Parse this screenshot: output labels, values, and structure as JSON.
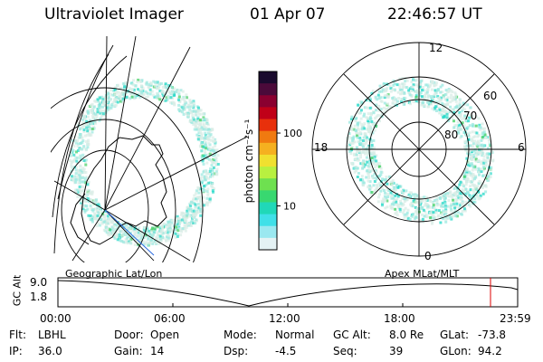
{
  "header": {
    "title": "Ultraviolet Imager",
    "date": "01 Apr 07",
    "time": "22:46:57 UT"
  },
  "panels": {
    "left_label": "Geographic Lat/Lon",
    "right_label": "Apex MLat/MLT"
  },
  "colorbar": {
    "label": "photon cm⁻²s⁻¹",
    "tick_labels": [
      "100",
      "10"
    ],
    "tick_values": [
      100,
      10
    ],
    "min": 2.5,
    "max": 700,
    "colors": [
      "#1a0a2e",
      "#4b0a3a",
      "#8a0030",
      "#c00018",
      "#e8300c",
      "#f07a10",
      "#f5b020",
      "#f0e030",
      "#b8f040",
      "#6ee050",
      "#38d870",
      "#20d8b8",
      "#40e0e8",
      "#9ae8f0",
      "#e4f2f4"
    ]
  },
  "polar": {
    "ring_labels": [
      "60",
      "70",
      "80"
    ],
    "mlt_labels": [
      "12",
      "18",
      "6",
      "0"
    ]
  },
  "timeline": {
    "y_axis_label": "GC Alt",
    "y_ticks": [
      "9.0",
      "1.8"
    ],
    "x_ticks": [
      "00:00",
      "06:00",
      "12:00",
      "18:00",
      "23:59"
    ],
    "marker_time": "22:46:57"
  },
  "info": [
    [
      {
        "k": "Flt:",
        "v": "LBHL"
      },
      {
        "k": "Door:",
        "v": "Open"
      },
      {
        "k": "Mode:",
        "v": "Normal"
      },
      {
        "k": "GC Alt:",
        "v": "8.0 Re"
      },
      {
        "k": "GLat:",
        "v": "-73.8"
      }
    ],
    [
      {
        "k": "IP:",
        "v": "36.0"
      },
      {
        "k": "Gain:",
        "v": "14"
      },
      {
        "k": "Dsp:",
        "v": "-4.5"
      },
      {
        "k": "Seq:",
        "v": "39"
      },
      {
        "k": "GLon:",
        "v": "94.2"
      }
    ]
  ],
  "colors": {
    "auroral_low": "#d8ece6",
    "auroral_mid": "#9ae8e0",
    "auroral_high": "#22d8c8",
    "auroral_peak": "#40d060",
    "marker": "#dd0000",
    "footprint": "#2a6ae0"
  }
}
